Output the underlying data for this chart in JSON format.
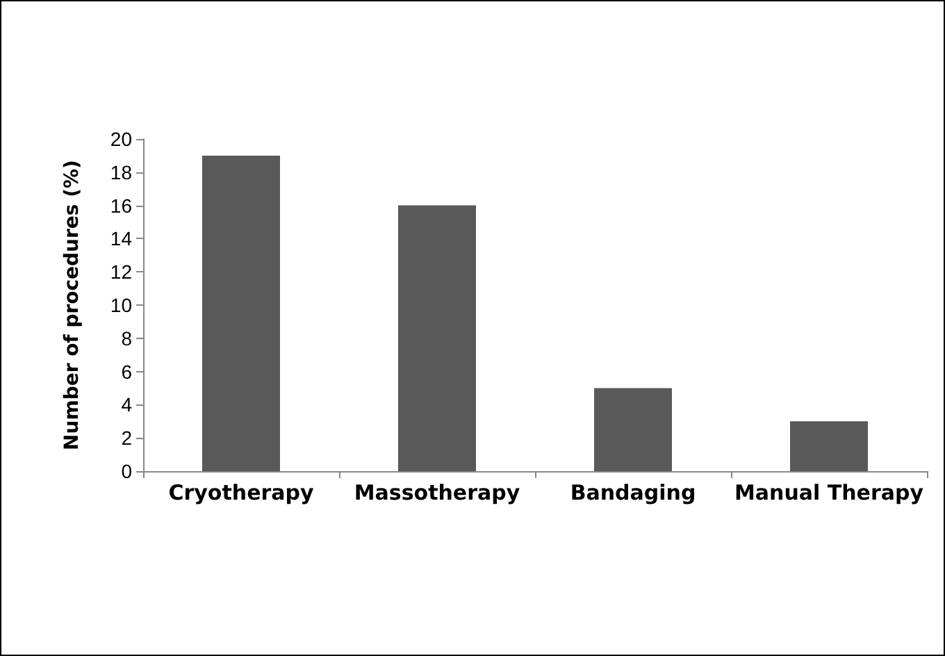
{
  "chart_data": {
    "type": "bar",
    "ylabel": "Number of procedures (%)",
    "categories": [
      "Cryotherapy",
      "Massotherapy",
      "Bandaging",
      "Manual Therapy"
    ],
    "values": [
      19,
      16,
      5,
      3
    ],
    "color": "#595959",
    "ylim": [
      0,
      20
    ],
    "yticks": [
      0,
      2,
      4,
      6,
      8,
      10,
      12,
      14,
      16,
      18,
      20
    ],
    "grid": false
  }
}
